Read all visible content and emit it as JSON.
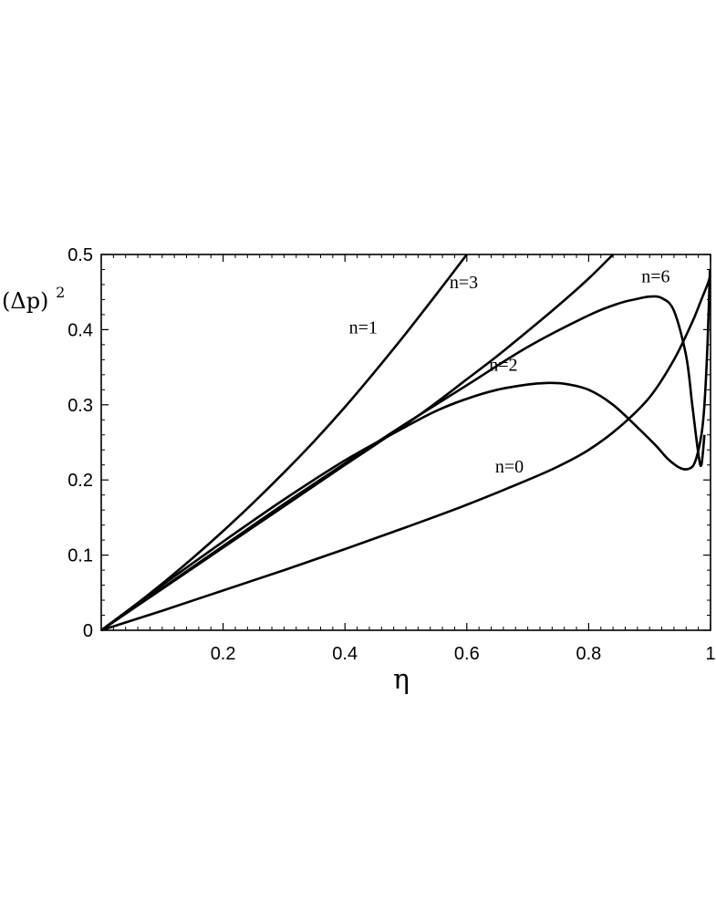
{
  "chart_data": {
    "type": "line",
    "title": "",
    "xlabel": "η",
    "ylabel": "(Δp)",
    "ylabel_exponent": "2",
    "xlim": [
      0,
      1
    ],
    "ylim": [
      0,
      0.5
    ],
    "grid": false,
    "x_ticks": [
      {
        "value": 0.2,
        "label": "0.2"
      },
      {
        "value": 0.4,
        "label": "0.4"
      },
      {
        "value": 0.6,
        "label": "0.6"
      },
      {
        "value": 0.8,
        "label": "0.8"
      },
      {
        "value": 1.0,
        "label": "1"
      }
    ],
    "y_ticks": [
      {
        "value": 0,
        "label": "0"
      },
      {
        "value": 0.1,
        "label": "0.1"
      },
      {
        "value": 0.2,
        "label": "0.2"
      },
      {
        "value": 0.3,
        "label": "0.3"
      },
      {
        "value": 0.4,
        "label": "0.4"
      },
      {
        "value": 0.5,
        "label": "0.5"
      }
    ],
    "series": [
      {
        "name": "n=1",
        "label_at": [
          0.43,
          0.395
        ],
        "x": [
          0,
          0.05,
          0.1,
          0.15,
          0.2,
          0.25,
          0.3,
          0.35,
          0.4,
          0.45,
          0.5,
          0.55,
          0.6
        ],
        "y": [
          0,
          0.03,
          0.062,
          0.096,
          0.132,
          0.17,
          0.21,
          0.252,
          0.297,
          0.345,
          0.395,
          0.447,
          0.5
        ]
      },
      {
        "name": "n=3",
        "label_at": [
          0.595,
          0.455
        ],
        "x": [
          0,
          0.1,
          0.2,
          0.3,
          0.4,
          0.5,
          0.55,
          0.6,
          0.65,
          0.7,
          0.75,
          0.8,
          0.84
        ],
        "y": [
          0,
          0.055,
          0.11,
          0.165,
          0.22,
          0.274,
          0.303,
          0.334,
          0.365,
          0.398,
          0.432,
          0.468,
          0.5
        ]
      },
      {
        "name": "n=6",
        "label_at": [
          0.91,
          0.463
        ],
        "x": [
          0,
          0.1,
          0.2,
          0.3,
          0.4,
          0.5,
          0.6,
          0.7,
          0.8,
          0.85,
          0.88,
          0.9,
          0.92,
          0.94,
          0.96,
          0.97,
          0.98,
          0.985,
          0.99
        ],
        "y": [
          0,
          0.056,
          0.112,
          0.168,
          0.222,
          0.275,
          0.326,
          0.377,
          0.419,
          0.435,
          0.441,
          0.444,
          0.442,
          0.425,
          0.365,
          0.3,
          0.235,
          0.22,
          0.26
        ]
      },
      {
        "name": "n=2",
        "label_at": [
          0.66,
          0.345
        ],
        "x": [
          0,
          0.1,
          0.2,
          0.3,
          0.4,
          0.5,
          0.55,
          0.6,
          0.65,
          0.7,
          0.73,
          0.76,
          0.8,
          0.84,
          0.88,
          0.91,
          0.93,
          0.95,
          0.965,
          0.975,
          0.985,
          0.99,
          0.995,
          0.999
        ],
        "y": [
          0,
          0.06,
          0.118,
          0.174,
          0.226,
          0.271,
          0.292,
          0.308,
          0.32,
          0.327,
          0.329,
          0.328,
          0.32,
          0.3,
          0.27,
          0.246,
          0.228,
          0.216,
          0.215,
          0.225,
          0.26,
          0.3,
          0.38,
          0.48
        ]
      },
      {
        "name": "n=0",
        "label_at": [
          0.67,
          0.21
        ],
        "x": [
          0,
          0.1,
          0.2,
          0.3,
          0.4,
          0.5,
          0.6,
          0.7,
          0.75,
          0.8,
          0.85,
          0.9,
          0.94,
          0.97,
          0.985,
          0.995,
          0.999
        ],
        "y": [
          0,
          0.026,
          0.053,
          0.08,
          0.108,
          0.137,
          0.167,
          0.2,
          0.218,
          0.24,
          0.27,
          0.31,
          0.36,
          0.41,
          0.44,
          0.46,
          0.47
        ]
      }
    ]
  }
}
